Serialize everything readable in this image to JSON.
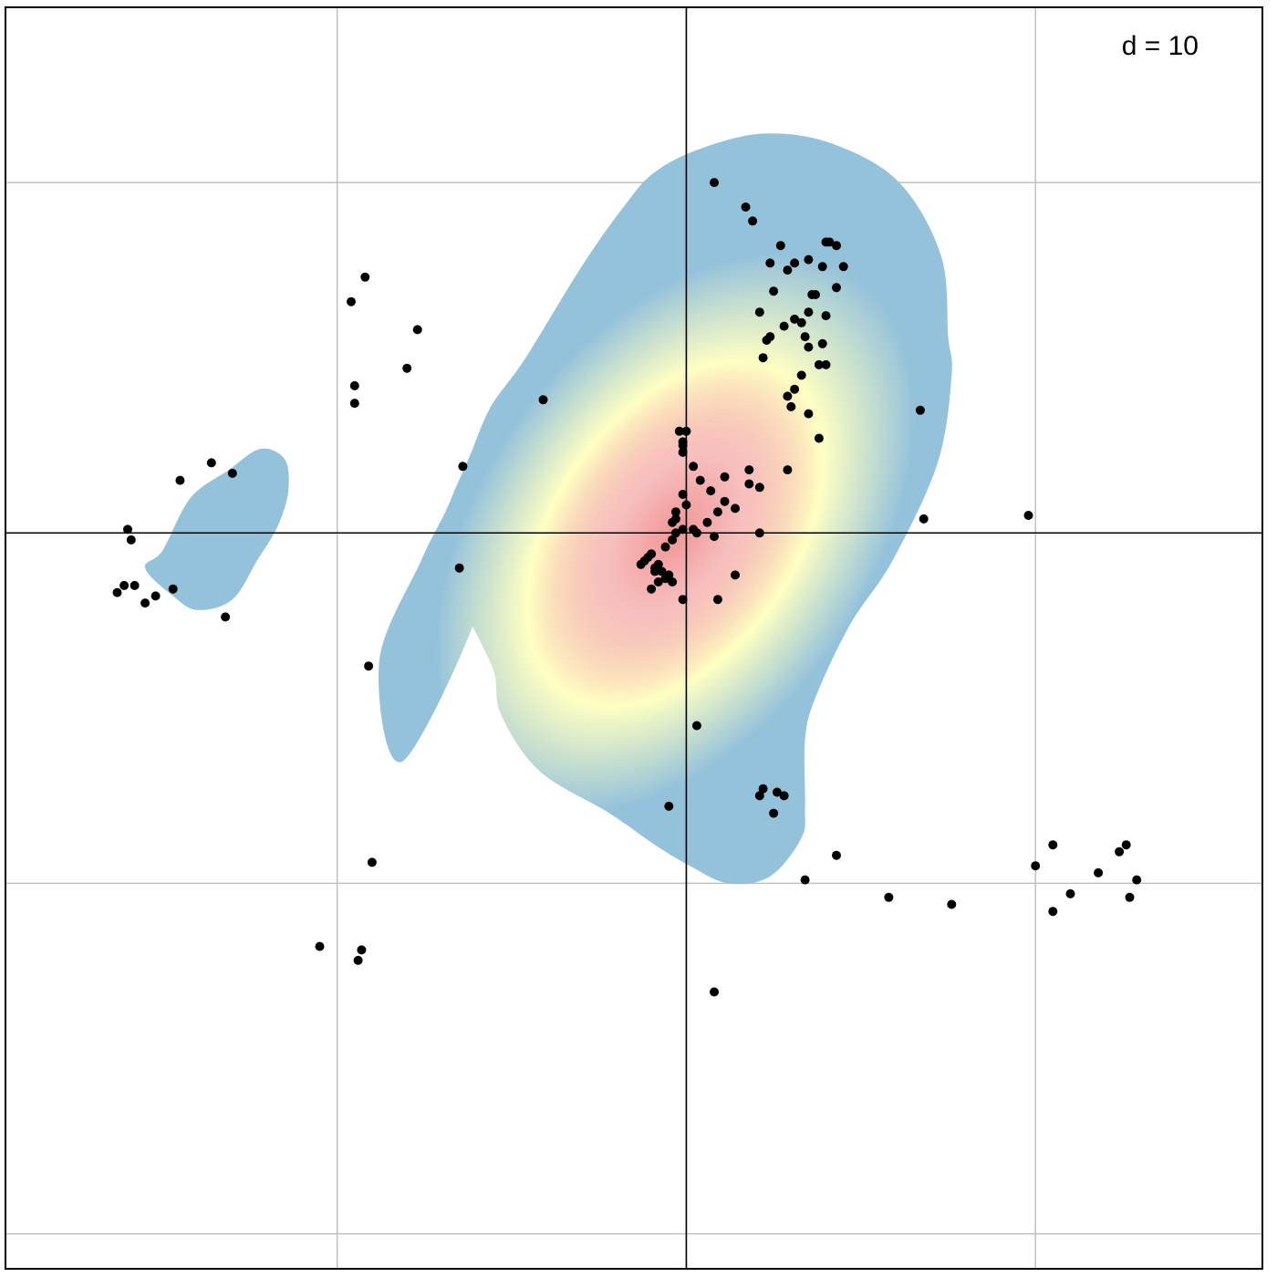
{
  "chart_data": {
    "type": "scatter",
    "title": "",
    "xlabel": "",
    "ylabel": "",
    "annotation": "d = 10",
    "legend": "none",
    "grid": true,
    "xlim": [
      -1.95,
      1.65
    ],
    "ylim": [
      -2.1,
      1.5
    ],
    "gridlines_x": [
      -1.0,
      0.0,
      1.0
    ],
    "gridlines_y": [
      -1.0,
      0.0,
      1.0,
      -2.0
    ],
    "axis_lines": {
      "x": 0,
      "y": 0
    },
    "colors": {
      "background": "#ffffff",
      "grid": "#c0c0c0",
      "axis": "#000000",
      "points": "#000000",
      "density_low": "#8fbfd9",
      "density_mid": "#ffffbf",
      "density_high": "#f08a8a"
    },
    "density_regions": [
      {
        "level": "low",
        "outline": [
          [
            -0.57,
            -0.14
          ],
          [
            -0.81,
            -0.65
          ],
          [
            -0.88,
            -0.37
          ],
          [
            -0.76,
            -0.08
          ],
          [
            -0.69,
            0.06
          ],
          [
            -0.66,
            0.13
          ],
          [
            -0.62,
            0.22
          ],
          [
            -0.56,
            0.36
          ],
          [
            -0.46,
            0.5
          ],
          [
            -0.3,
            0.76
          ],
          [
            -0.18,
            0.93
          ],
          [
            -0.09,
            1.03
          ],
          [
            0.05,
            1.1
          ],
          [
            0.23,
            1.14
          ],
          [
            0.42,
            1.11
          ],
          [
            0.61,
            1.0
          ],
          [
            0.73,
            0.79
          ],
          [
            0.75,
            0.56
          ],
          [
            0.76,
            0.45
          ],
          [
            0.72,
            0.2
          ],
          [
            0.59,
            -0.08
          ],
          [
            0.47,
            -0.26
          ],
          [
            0.37,
            -0.47
          ],
          [
            0.34,
            -0.59
          ],
          [
            0.34,
            -0.78
          ],
          [
            0.33,
            -0.87
          ],
          [
            0.24,
            -0.98
          ],
          [
            0.12,
            -1.0
          ],
          [
            0.01,
            -0.95
          ],
          [
            -0.09,
            -0.89
          ],
          [
            -0.22,
            -0.8
          ],
          [
            -0.42,
            -0.68
          ],
          [
            -0.53,
            -0.52
          ],
          [
            -0.55,
            -0.4
          ],
          [
            -0.6,
            -0.29
          ],
          [
            -0.71,
            -0.07
          ]
        ],
        "center": [
          0.0,
          0.05
        ]
      },
      {
        "level": "low-small",
        "outline": [
          [
            -1.5,
            -0.05
          ],
          [
            -1.42,
            0.1
          ],
          [
            -1.31,
            0.18
          ],
          [
            -1.22,
            0.24
          ],
          [
            -1.15,
            0.21
          ],
          [
            -1.14,
            0.12
          ],
          [
            -1.17,
            0.02
          ],
          [
            -1.23,
            -0.08
          ],
          [
            -1.3,
            -0.19
          ],
          [
            -1.4,
            -0.22
          ],
          [
            -1.47,
            -0.18
          ],
          [
            -1.55,
            -0.1
          ]
        ],
        "center": [
          -1.35,
          0.0
        ]
      }
    ],
    "points": {
      "x": [
        0.08,
        0.08,
        -0.65,
        -0.91,
        -0.93,
        -1.05,
        -0.94,
        -0.9,
        -1.3,
        -1.32,
        -1.47,
        -1.61,
        -1.58,
        -1.63,
        -1.6,
        -1.59,
        -1.55,
        -1.52,
        -1.45,
        -1.36,
        -0.64,
        -0.95,
        -0.41,
        -0.77,
        -0.96,
        -0.92,
        -0.95,
        -0.8,
        0.03,
        -0.05,
        0.22,
        0.26,
        0.28,
        0.21,
        0.25,
        0.34,
        0.43,
        0.58,
        0.68,
        0.98,
        1.05,
        0.76,
        1.0,
        1.1,
        1.05,
        1.18,
        1.27,
        1.24,
        1.26,
        1.29,
        0.24,
        0.27,
        0.17,
        0.19,
        0.25,
        0.29,
        0.31,
        0.35,
        0.41,
        0.43,
        0.4,
        0.45,
        0.39,
        0.43,
        0.36,
        0.33,
        0.34,
        0.35,
        0.31,
        0.24,
        0.21,
        0.23,
        0.22,
        0.4,
        0.37,
        0.28,
        0.4,
        0.35,
        0.35,
        0.38,
        0.29,
        0.3,
        0.31,
        0.14,
        0.11,
        0.18,
        0.04,
        -0.01,
        -0.03,
        0.0,
        0.06,
        0.08,
        -0.03,
        -0.01,
        -0.04,
        -0.1,
        -0.12,
        -0.13,
        -0.08,
        -0.09,
        -0.07,
        -0.05,
        -0.06,
        -0.09,
        -0.11,
        -0.06,
        -0.03,
        -0.04,
        0.02,
        0.03,
        0.14,
        0.11,
        0.09,
        0.21,
        0.29,
        0.18,
        0.07,
        -0.01,
        -0.01,
        -0.02,
        0.0,
        -0.01,
        0.02,
        0.09,
        -0.01,
        -0.08,
        -0.1,
        -0.04,
        0.21,
        0.33,
        0.38,
        0.39,
        0.67
      ],
      "y": [
        1.0,
        -1.31,
        -0.1,
        -0.38,
        -1.19,
        -1.18,
        -1.22,
        -0.94,
        0.17,
        -0.24,
        -0.16,
        -0.15,
        -0.15,
        -0.17,
        0.01,
        -0.02,
        -0.2,
        -0.18,
        0.15,
        0.2,
        0.19,
        0.37,
        0.38,
        0.58,
        0.66,
        0.73,
        0.42,
        0.47,
        -0.55,
        -0.78,
        -0.73,
        -0.74,
        -0.75,
        -0.75,
        -0.8,
        -0.99,
        -0.92,
        -1.04,
        0.04,
        0.05,
        -0.89,
        -1.06,
        -0.95,
        -1.03,
        -1.08,
        -0.97,
        -1.04,
        -0.91,
        -0.89,
        -0.99,
        0.77,
        0.82,
        0.93,
        0.89,
        0.69,
        0.75,
        0.77,
        0.78,
        0.83,
        0.82,
        0.83,
        0.76,
        0.76,
        0.7,
        0.68,
        0.6,
        0.56,
        0.63,
        0.61,
        0.56,
        0.63,
        0.55,
        0.5,
        0.62,
        0.68,
        0.59,
        0.48,
        0.34,
        0.53,
        0.48,
        0.39,
        0.36,
        0.41,
        0.07,
        0.16,
        0.14,
        0.15,
        0.11,
        0.06,
        0.08,
        0.03,
        -0.01,
        0.04,
        0.01,
        -0.02,
        -0.06,
        -0.08,
        -0.09,
        -0.09,
        -0.11,
        -0.11,
        -0.12,
        -0.13,
        -0.1,
        -0.07,
        -0.04,
        0.0,
        0.03,
        0.01,
        0.0,
        -0.12,
        0.09,
        0.06,
        0.13,
        0.18,
        0.18,
        0.12,
        0.23,
        0.26,
        0.29,
        0.29,
        0.25,
        0.19,
        -0.19,
        -0.19,
        -0.14,
        -0.16,
        -0.14,
        0.0,
        0.45,
        0.27,
        0.54,
        0.35
      ]
    }
  }
}
